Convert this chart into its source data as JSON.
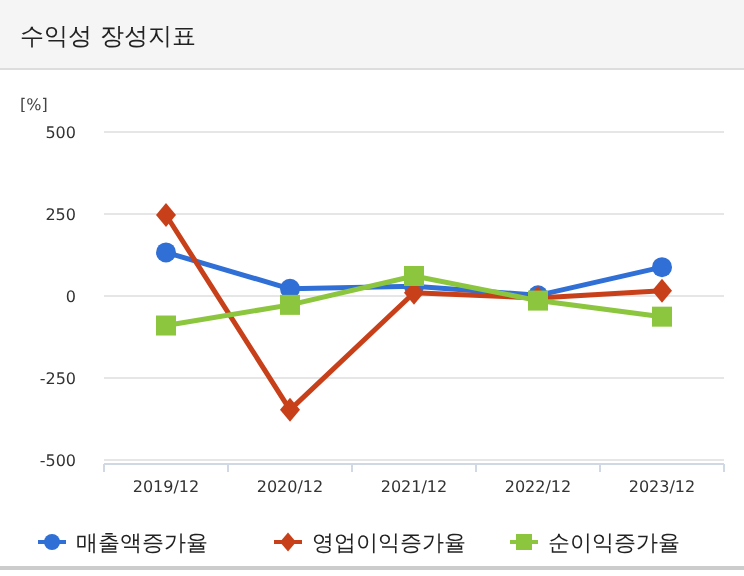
{
  "chart_data": {
    "type": "line",
    "title": "수익성 장성지표",
    "ylabel": "[%]",
    "categories": [
      "2019/12",
      "2020/12",
      "2021/12",
      "2022/12",
      "2023/12"
    ],
    "series": [
      {
        "name": "매출액증가율",
        "color": "#2f6fd6",
        "marker": "circle",
        "values": [
          133,
          22,
          30,
          2,
          88
        ]
      },
      {
        "name": "영업이익증가율",
        "color": "#c8401a",
        "marker": "diamond",
        "values": [
          247,
          -347,
          10,
          -6,
          16
        ]
      },
      {
        "name": "순이익증가율",
        "color": "#8cc63e",
        "marker": "square",
        "values": [
          -90,
          -27,
          61,
          -14,
          -63
        ]
      }
    ],
    "ylim": [
      -500,
      500
    ],
    "yticks": [
      -500,
      -250,
      0,
      250,
      500
    ],
    "grid": "y",
    "legend": "bottom",
    "line_style": "solid"
  }
}
